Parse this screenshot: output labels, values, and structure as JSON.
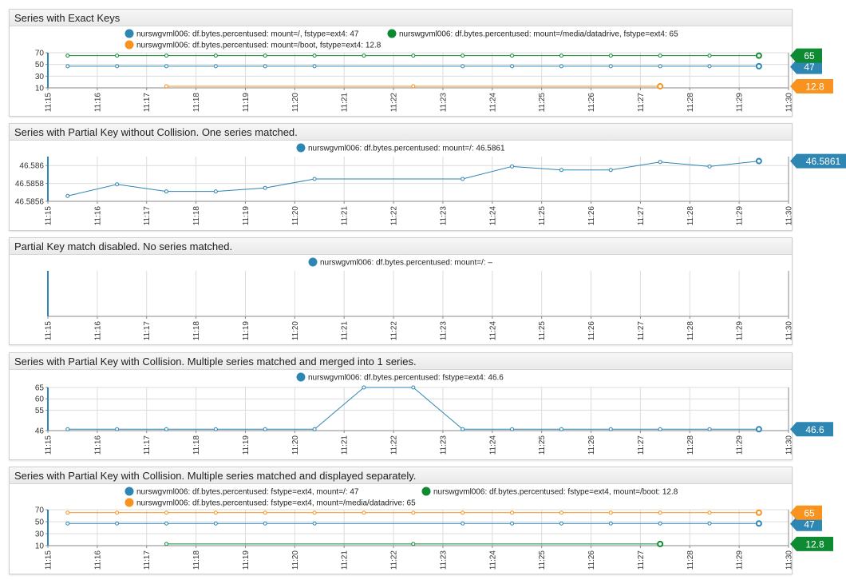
{
  "colors": {
    "blue": "#2e86b3",
    "green": "#0e8a33",
    "orange": "#f7931e",
    "grid": "#dcdcdc",
    "axis": "#888888"
  },
  "x_ticks": [
    "11:15",
    "11:16",
    "11:17",
    "11:18",
    "11:19",
    "11:20",
    "11:21",
    "11:22",
    "11:23",
    "11:24",
    "11:25",
    "11:26",
    "11:27",
    "11:28",
    "11:29",
    "11:30"
  ],
  "widgets": [
    {
      "title": "Series with Exact Keys",
      "chart_data": {
        "type": "line",
        "xlim": [
          "11:15",
          "11:30"
        ],
        "ylim": [
          10,
          70
        ],
        "yticks": [
          10,
          30,
          50,
          70
        ],
        "ytick_labels": [
          "10",
          "30",
          "50",
          "70"
        ],
        "series": [
          {
            "name": "nurswgvml006: df.bytes.percentused: mount=/, fstype=ext4",
            "legend_label": "nurswgvml006: df.bytes.percentused: mount=/, fstype=ext4: 47",
            "color": "#2e86b3",
            "x": [
              "11:15:24",
              "11:16:24",
              "11:17:24",
              "11:18:24",
              "11:19:24",
              "11:20:24",
              "11:23:24",
              "11:24:24",
              "11:25:24",
              "11:26:24",
              "11:27:24",
              "11:28:24",
              "11:29:24"
            ],
            "values": [
              47,
              47,
              47,
              47,
              47,
              47,
              47,
              47,
              47,
              47,
              47,
              47,
              47
            ],
            "last_value": "47"
          },
          {
            "name": "nurswgvml006: df.bytes.percentused: mount=/media/datadrive, fstype=ext4",
            "legend_label": "nurswgvml006: df.bytes.percentused: mount=/media/datadrive, fstype=ext4: 65",
            "color": "#0e8a33",
            "x": [
              "11:15:24",
              "11:16:24",
              "11:17:24",
              "11:18:24",
              "11:19:24",
              "11:20:24",
              "11:21:24",
              "11:22:24",
              "11:23:24",
              "11:24:24",
              "11:25:24",
              "11:26:24",
              "11:27:24",
              "11:28:24",
              "11:29:24"
            ],
            "values": [
              65,
              65,
              65,
              65,
              65,
              65,
              65,
              65,
              65,
              65,
              65,
              65,
              65,
              65,
              65
            ],
            "last_value": "65"
          },
          {
            "name": "nurswgvml006: df.bytes.percentused: mount=/boot, fstype=ext4",
            "legend_label": "nurswgvml006: df.bytes.percentused: mount=/boot, fstype=ext4: 12.8",
            "color": "#f7931e",
            "x": [
              "11:17:24",
              "11:22:24",
              "11:27:24"
            ],
            "values": [
              12.8,
              12.8,
              12.8
            ],
            "last_value": "12.8"
          }
        ]
      }
    },
    {
      "title": "Series with Partial Key without Collision. One series matched.",
      "chart_data": {
        "type": "line",
        "xlim": [
          "11:15",
          "11:30"
        ],
        "ylim": [
          46.5856,
          46.5861
        ],
        "yticks": [
          46.5856,
          46.5858,
          46.586
        ],
        "ytick_labels": [
          "46.5856",
          "46.5858",
          "46.586"
        ],
        "series": [
          {
            "name": "nurswgvml006: df.bytes.percentused: mount=/",
            "legend_label": "nurswgvml006: df.bytes.percentused: mount=/: 46.5861",
            "color": "#2e86b3",
            "x": [
              "11:15:24",
              "11:16:24",
              "11:17:24",
              "11:18:24",
              "11:19:24",
              "11:20:24",
              "11:23:24",
              "11:24:24",
              "11:25:24",
              "11:26:24",
              "11:27:24",
              "11:28:24",
              "11:29:24"
            ],
            "values": [
              46.58566,
              46.58579,
              46.58571,
              46.58571,
              46.58575,
              46.58585,
              46.58585,
              46.58599,
              46.58595,
              46.58595,
              46.58604,
              46.58599,
              46.58605
            ],
            "last_value": "46.5861"
          }
        ]
      }
    },
    {
      "title": "Partial Key match disabled. No series matched.",
      "chart_data": {
        "type": "line",
        "xlim": [
          "11:15",
          "11:30"
        ],
        "ylim": [
          0,
          1
        ],
        "yticks": [],
        "ytick_labels": [],
        "series": [
          {
            "name": "nurswgvml006: df.bytes.percentused: mount=/",
            "legend_label": "nurswgvml006: df.bytes.percentused: mount=/: –",
            "color": "#2e86b3",
            "x": [],
            "values": [],
            "last_value": ""
          }
        ]
      }
    },
    {
      "title": "Series with Partial Key with Collision. Multiple series matched and merged into 1 series.",
      "chart_data": {
        "type": "line",
        "xlim": [
          "11:15",
          "11:30"
        ],
        "ylim": [
          46,
          65
        ],
        "yticks": [
          46,
          55,
          60,
          65
        ],
        "ytick_labels": [
          "46",
          "55",
          "60",
          "65"
        ],
        "series": [
          {
            "name": "nurswgvml006: df.bytes.percentused: fstype=ext4",
            "legend_label": "nurswgvml006: df.bytes.percentused: fstype=ext4: 46.6",
            "color": "#2e86b3",
            "x": [
              "11:15:24",
              "11:16:24",
              "11:17:24",
              "11:18:24",
              "11:19:24",
              "11:20:24",
              "11:21:24",
              "11:22:24",
              "11:23:24",
              "11:24:24",
              "11:25:24",
              "11:26:24",
              "11:27:24",
              "11:28:24",
              "11:29:24"
            ],
            "values": [
              46.6,
              46.6,
              46.6,
              46.6,
              46.6,
              46.6,
              65,
              65,
              46.6,
              46.6,
              46.6,
              46.6,
              46.6,
              46.6,
              46.6
            ],
            "last_value": "46.6"
          }
        ]
      }
    },
    {
      "title": "Series with Partial Key with Collision. Multiple series matched and displayed separately.",
      "chart_data": {
        "type": "line",
        "xlim": [
          "11:15",
          "11:30"
        ],
        "ylim": [
          10,
          70
        ],
        "yticks": [
          10,
          30,
          50,
          70
        ],
        "ytick_labels": [
          "10",
          "30",
          "50",
          "70"
        ],
        "series": [
          {
            "name": "nurswgvml006: df.bytes.percentused: fstype=ext4, mount=/",
            "legend_label": "nurswgvml006: df.bytes.percentused: fstype=ext4, mount=/: 47",
            "color": "#2e86b3",
            "x": [
              "11:15:24",
              "11:16:24",
              "11:17:24",
              "11:18:24",
              "11:19:24",
              "11:20:24",
              "11:23:24",
              "11:24:24",
              "11:25:24",
              "11:26:24",
              "11:27:24",
              "11:28:24",
              "11:29:24"
            ],
            "values": [
              47,
              47,
              47,
              47,
              47,
              47,
              47,
              47,
              47,
              47,
              47,
              47,
              47
            ],
            "last_value": "47"
          },
          {
            "name": "nurswgvml006: df.bytes.percentused: fstype=ext4, mount=/boot",
            "legend_label": "nurswgvml006: df.bytes.percentused: fstype=ext4, mount=/boot: 12.8",
            "color": "#0e8a33",
            "x": [
              "11:17:24",
              "11:22:24",
              "11:27:24"
            ],
            "values": [
              12.8,
              12.8,
              12.8
            ],
            "last_value": "12.8"
          },
          {
            "name": "nurswgvml006: df.bytes.percentused: fstype=ext4, mount=/media/datadrive",
            "legend_label": "nurswgvml006: df.bytes.percentused: fstype=ext4, mount=/media/datadrive: 65",
            "color": "#f7931e",
            "x": [
              "11:15:24",
              "11:16:24",
              "11:17:24",
              "11:18:24",
              "11:19:24",
              "11:20:24",
              "11:21:24",
              "11:22:24",
              "11:23:24",
              "11:24:24",
              "11:25:24",
              "11:26:24",
              "11:27:24",
              "11:28:24",
              "11:29:24"
            ],
            "values": [
              65,
              65,
              65,
              65,
              65,
              65,
              65,
              65,
              65,
              65,
              65,
              65,
              65,
              65,
              65
            ],
            "last_value": "65"
          }
        ]
      }
    }
  ]
}
